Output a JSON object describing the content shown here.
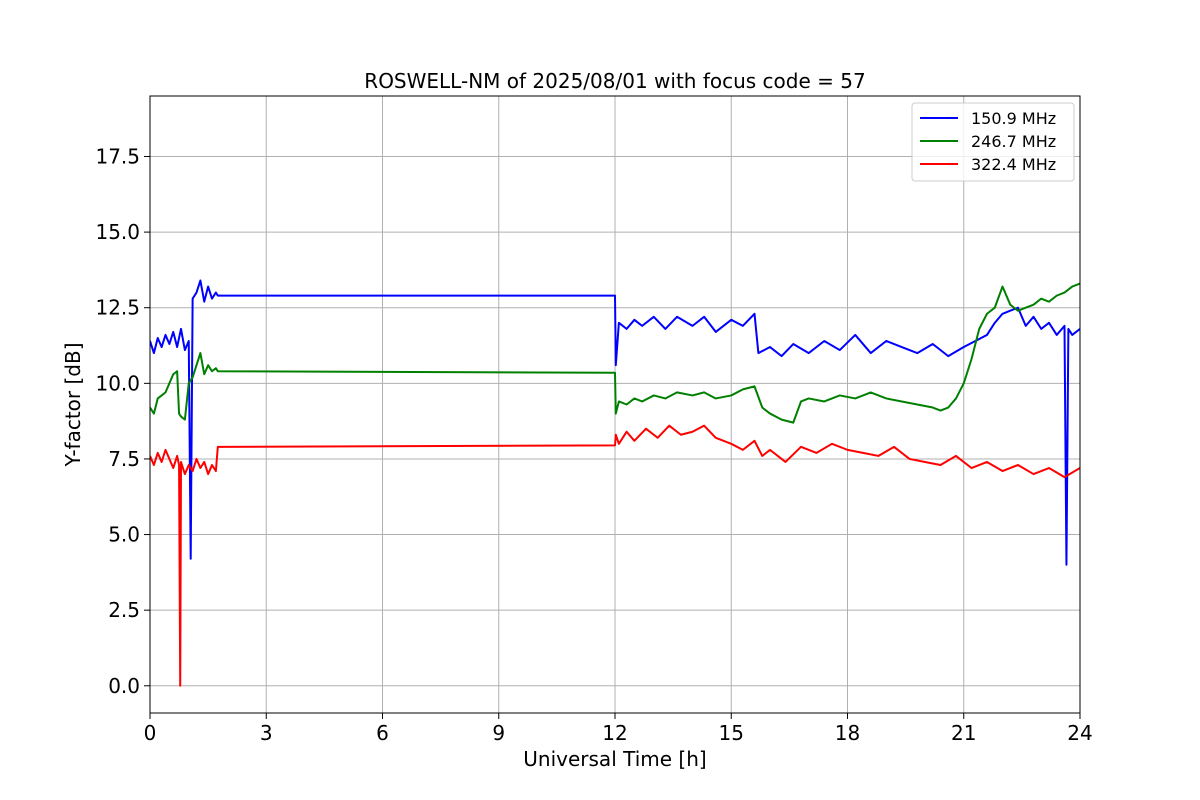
{
  "chart_data": {
    "type": "line",
    "title": "ROSWELL-NM of 2025/08/01 with focus code = 57",
    "xlabel": "Universal Time [h]",
    "ylabel": "Y-factor [dB]",
    "xlim": [
      0,
      24
    ],
    "ylim": [
      -0.9,
      19.5
    ],
    "xticks": [
      0,
      3,
      6,
      9,
      12,
      15,
      18,
      21,
      24
    ],
    "xtick_labels": [
      "0",
      "3",
      "6",
      "9",
      "12",
      "15",
      "18",
      "21",
      "24"
    ],
    "yticks": [
      0.0,
      2.5,
      5.0,
      7.5,
      10.0,
      12.5,
      15.0,
      17.5
    ],
    "ytick_labels": [
      "0.0",
      "2.5",
      "5.0",
      "7.5",
      "10.0",
      "12.5",
      "15.0",
      "17.5"
    ],
    "grid": true,
    "legend_position": "upper right",
    "series": [
      {
        "name": "150.9 MHz",
        "color": "#0000ff",
        "x": [
          0,
          0.1,
          0.2,
          0.3,
          0.4,
          0.5,
          0.6,
          0.7,
          0.8,
          0.9,
          1.0,
          1.05,
          1.1,
          1.2,
          1.3,
          1.4,
          1.5,
          1.6,
          1.7,
          1.75,
          12.0,
          12.02,
          12.1,
          12.3,
          12.5,
          12.7,
          13.0,
          13.3,
          13.6,
          14.0,
          14.3,
          14.6,
          15.0,
          15.3,
          15.6,
          15.7,
          16.0,
          16.3,
          16.6,
          17.0,
          17.4,
          17.8,
          18.2,
          18.6,
          19.0,
          19.4,
          19.8,
          20.2,
          20.6,
          21.0,
          21.3,
          21.6,
          21.8,
          22.0,
          22.2,
          22.4,
          22.6,
          22.8,
          23.0,
          23.2,
          23.4,
          23.6,
          23.65,
          23.7,
          23.8,
          24.0
        ],
        "y": [
          11.4,
          11.0,
          11.5,
          11.2,
          11.6,
          11.3,
          11.7,
          11.2,
          11.8,
          11.1,
          11.4,
          4.2,
          12.8,
          13.0,
          13.4,
          12.7,
          13.2,
          12.8,
          13.0,
          12.9,
          12.9,
          10.6,
          12.0,
          11.8,
          12.1,
          11.9,
          12.2,
          11.8,
          12.2,
          11.9,
          12.2,
          11.7,
          12.1,
          11.9,
          12.3,
          11.0,
          11.2,
          10.9,
          11.3,
          11.0,
          11.4,
          11.1,
          11.6,
          11.0,
          11.4,
          11.2,
          11.0,
          11.3,
          10.9,
          11.2,
          11.4,
          11.6,
          12.0,
          12.3,
          12.4,
          12.5,
          11.9,
          12.2,
          11.8,
          12.0,
          11.6,
          11.9,
          4.0,
          11.8,
          11.6,
          11.8
        ]
      },
      {
        "name": "246.7 MHz",
        "color": "#008000",
        "x": [
          0,
          0.1,
          0.2,
          0.3,
          0.4,
          0.5,
          0.6,
          0.7,
          0.75,
          0.8,
          0.9,
          1.0,
          1.1,
          1.2,
          1.3,
          1.4,
          1.5,
          1.6,
          1.7,
          1.75,
          12.0,
          12.02,
          12.1,
          12.3,
          12.5,
          12.7,
          13.0,
          13.3,
          13.6,
          14.0,
          14.3,
          14.6,
          15.0,
          15.3,
          15.6,
          15.8,
          16.0,
          16.3,
          16.6,
          16.8,
          17.0,
          17.4,
          17.8,
          18.2,
          18.6,
          19.0,
          19.4,
          19.8,
          20.2,
          20.4,
          20.6,
          20.8,
          21.0,
          21.2,
          21.4,
          21.6,
          21.8,
          22.0,
          22.2,
          22.4,
          22.6,
          22.8,
          23.0,
          23.2,
          23.4,
          23.6,
          23.8,
          24.0
        ],
        "y": [
          9.2,
          9.0,
          9.5,
          9.6,
          9.7,
          10.0,
          10.3,
          10.4,
          9.0,
          8.9,
          8.8,
          10.0,
          10.2,
          10.6,
          11.0,
          10.3,
          10.6,
          10.4,
          10.5,
          10.4,
          10.35,
          9.0,
          9.4,
          9.3,
          9.5,
          9.4,
          9.6,
          9.5,
          9.7,
          9.6,
          9.7,
          9.5,
          9.6,
          9.8,
          9.9,
          9.2,
          9.0,
          8.8,
          8.7,
          9.4,
          9.5,
          9.4,
          9.6,
          9.5,
          9.7,
          9.5,
          9.4,
          9.3,
          9.2,
          9.1,
          9.2,
          9.5,
          10.0,
          10.8,
          11.8,
          12.3,
          12.5,
          13.2,
          12.6,
          12.4,
          12.5,
          12.6,
          12.8,
          12.7,
          12.9,
          13.0,
          13.2,
          13.3
        ]
      },
      {
        "name": "322.4 MHz",
        "color": "#ff0000",
        "x": [
          0,
          0.1,
          0.2,
          0.3,
          0.4,
          0.5,
          0.6,
          0.7,
          0.75,
          0.78,
          0.8,
          0.85,
          0.9,
          1.0,
          1.1,
          1.2,
          1.3,
          1.4,
          1.5,
          1.6,
          1.7,
          1.75,
          12.0,
          12.02,
          12.1,
          12.3,
          12.5,
          12.8,
          13.1,
          13.4,
          13.7,
          14.0,
          14.3,
          14.6,
          15.0,
          15.3,
          15.6,
          15.8,
          16.0,
          16.4,
          16.8,
          17.2,
          17.6,
          18.0,
          18.4,
          18.8,
          19.2,
          19.6,
          20.0,
          20.4,
          20.8,
          21.2,
          21.6,
          22.0,
          22.4,
          22.8,
          23.2,
          23.6,
          24.0
        ],
        "y": [
          7.6,
          7.3,
          7.7,
          7.4,
          7.8,
          7.5,
          7.2,
          7.6,
          7.3,
          0.0,
          7.4,
          7.2,
          7.0,
          7.3,
          7.1,
          7.5,
          7.2,
          7.4,
          7.0,
          7.3,
          7.1,
          7.9,
          7.95,
          8.3,
          8.0,
          8.4,
          8.1,
          8.5,
          8.2,
          8.6,
          8.3,
          8.4,
          8.6,
          8.2,
          8.0,
          7.8,
          8.1,
          7.6,
          7.8,
          7.4,
          7.9,
          7.7,
          8.0,
          7.8,
          7.7,
          7.6,
          7.9,
          7.5,
          7.4,
          7.3,
          7.6,
          7.2,
          7.4,
          7.1,
          7.3,
          7.0,
          7.2,
          6.9,
          7.2
        ]
      }
    ]
  }
}
